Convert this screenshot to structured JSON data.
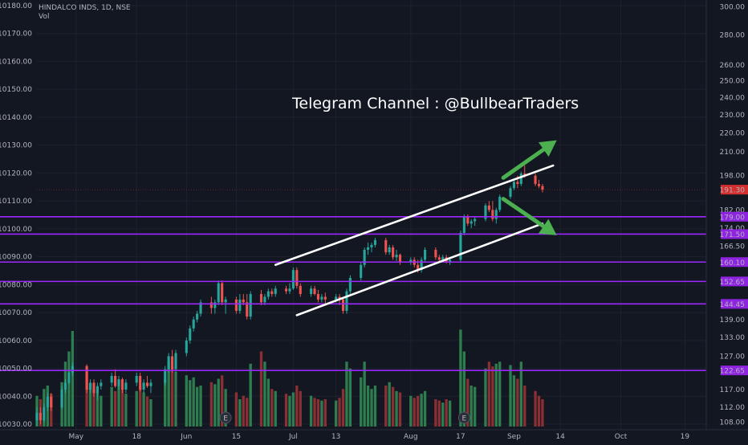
{
  "header": {
    "title": "HINDALCO INDS, 1D, NSE",
    "volume_label": "Vol"
  },
  "annotation": "Telegram Channel : @BullbearTraders",
  "colors": {
    "background": "#131722",
    "grid": "#1e222d",
    "up": "#26a69a",
    "down": "#ef5350",
    "vol_up": "#2e7d4f",
    "vol_down": "#8a2f33",
    "level": "#9c27ff",
    "level_label": "#8e24e0",
    "last_price": "#d32f2f",
    "arrow": "#4caf50",
    "trend": "#ffffff",
    "axis_text": "#b2b5be"
  },
  "chart_data": {
    "type": "candlestick",
    "title": "HINDALCO INDS, 1D, NSE",
    "left_axis_ticks": [
      10030,
      10040,
      10050,
      10060,
      10070,
      10080,
      10090,
      10100,
      10110,
      10120,
      10130,
      10140,
      10150,
      10160,
      10170,
      10180
    ],
    "left_axis_labels": [
      "10030.00",
      "10040.00",
      "10050.00",
      "10060.00",
      "10070.00",
      "10080.00",
      "10090.00",
      "10100.00",
      "10110.00",
      "10120.00",
      "10130.00",
      "10140.00",
      "10150.00",
      "10160.00",
      "10170.00",
      "10180.00"
    ],
    "left_axis_range": [
      10028,
      10182
    ],
    "right_axis_scale": "log",
    "right_axis_range": [
      106,
      305
    ],
    "right_axis_ticks": [
      108,
      112,
      117,
      122,
      127,
      133,
      139,
      144,
      152,
      160,
      166.5,
      174,
      182,
      190,
      198,
      210,
      220,
      230,
      240,
      250,
      260,
      280,
      300
    ],
    "right_axis_labels": [
      "108.00",
      "112.00",
      "117.00",
      "122.00",
      "127.00",
      "133.00",
      "139.00",
      "",
      "",
      "",
      "166.50",
      "174.00",
      "182.00",
      "",
      "198.00",
      "210.00",
      "220.00",
      "230.00",
      "240.00",
      "250.00",
      "260.00",
      "280.00",
      "300.00"
    ],
    "x_axis_range": [
      "2020-04-20",
      "2020-10-25"
    ],
    "x_ticks": [
      {
        "date": "2020-05-01",
        "label": "May"
      },
      {
        "date": "2020-05-18",
        "label": "18"
      },
      {
        "date": "2020-06-01",
        "label": "Jun"
      },
      {
        "date": "2020-06-15",
        "label": "15"
      },
      {
        "date": "2020-07-01",
        "label": "Jul"
      },
      {
        "date": "2020-07-13",
        "label": "13"
      },
      {
        "date": "2020-08-03",
        "label": "Aug"
      },
      {
        "date": "2020-08-17",
        "label": "17"
      },
      {
        "date": "2020-09-01",
        "label": "Sep"
      },
      {
        "date": "2020-09-14",
        "label": "14"
      },
      {
        "date": "2020-10-01",
        "label": "Oct"
      },
      {
        "date": "2020-10-19",
        "label": "19"
      }
    ],
    "levels": [
      {
        "value": 179.0,
        "label": "179.00"
      },
      {
        "value": 171.5,
        "label": "171.50"
      },
      {
        "value": 160.1,
        "label": "160.10"
      },
      {
        "value": 152.65,
        "label": "152.65"
      },
      {
        "value": 144.45,
        "label": "144.45"
      },
      {
        "value": 122.65,
        "label": "122.65"
      }
    ],
    "last_price": {
      "value": 191.3,
      "label": "191.30"
    },
    "trendlines": [
      {
        "from": {
          "date": "2020-06-26",
          "value": 159
        },
        "to": {
          "date": "2020-09-12",
          "value": 203
        }
      },
      {
        "from": {
          "date": "2020-07-02",
          "value": 140.5
        },
        "to": {
          "date": "2020-09-09",
          "value": 176
        }
      }
    ],
    "arrows": [
      {
        "from": {
          "date": "2020-08-29",
          "value": 197
        },
        "to": {
          "date": "2020-09-13",
          "value": 216
        }
      },
      {
        "from": {
          "date": "2020-08-29",
          "value": 187
        },
        "to": {
          "date": "2020-09-13",
          "value": 171
        }
      }
    ],
    "earnings_markers": [
      {
        "date": "2020-06-12",
        "label": "E"
      },
      {
        "date": "2020-08-18",
        "label": "E"
      }
    ],
    "volume_range": [
      0,
      160
    ],
    "candles": [
      {
        "date": "2020-04-20",
        "o": 108.5,
        "h": 112,
        "l": 107,
        "c": 110.5,
        "v": 45
      },
      {
        "date": "2020-04-21",
        "o": 110.5,
        "h": 112,
        "l": 107.5,
        "c": 108.5,
        "v": 40
      },
      {
        "date": "2020-04-22",
        "o": 108.5,
        "h": 113,
        "l": 108,
        "c": 112,
        "v": 55
      },
      {
        "date": "2020-04-23",
        "o": 112,
        "h": 116,
        "l": 111,
        "c": 115,
        "v": 60
      },
      {
        "date": "2020-04-24",
        "o": 115,
        "h": 116,
        "l": 111,
        "c": 112,
        "v": 48
      },
      {
        "date": "2020-04-27",
        "o": 112,
        "h": 118,
        "l": 111.5,
        "c": 117,
        "v": 65
      },
      {
        "date": "2020-04-28",
        "o": 117,
        "h": 120,
        "l": 116,
        "c": 119,
        "v": 95
      },
      {
        "date": "2020-04-29",
        "o": 119,
        "h": 123,
        "l": 118.5,
        "c": 122,
        "v": 110
      },
      {
        "date": "2020-04-30",
        "o": 122,
        "h": 125,
        "l": 121,
        "c": 124,
        "v": 140
      },
      {
        "date": "2020-05-04",
        "o": 124,
        "h": 124.5,
        "l": 116,
        "c": 117,
        "v": 78
      },
      {
        "date": "2020-05-05",
        "o": 117,
        "h": 120,
        "l": 116,
        "c": 119,
        "v": 62
      },
      {
        "date": "2020-05-06",
        "o": 119,
        "h": 120,
        "l": 115,
        "c": 116,
        "v": 55
      },
      {
        "date": "2020-05-07",
        "o": 116,
        "h": 119,
        "l": 114,
        "c": 118,
        "v": 50
      },
      {
        "date": "2020-05-08",
        "o": 118,
        "h": 120,
        "l": 117,
        "c": 119,
        "v": 45
      },
      {
        "date": "2020-05-11",
        "o": 119,
        "h": 122,
        "l": 118,
        "c": 121,
        "v": 58
      },
      {
        "date": "2020-05-12",
        "o": 121,
        "h": 123,
        "l": 117.5,
        "c": 118,
        "v": 52
      },
      {
        "date": "2020-05-13",
        "o": 118,
        "h": 121,
        "l": 117,
        "c": 120,
        "v": 60
      },
      {
        "date": "2020-05-14",
        "o": 120,
        "h": 120.5,
        "l": 116,
        "c": 117,
        "v": 55
      },
      {
        "date": "2020-05-15",
        "o": 117,
        "h": 120,
        "l": 116,
        "c": 119,
        "v": 48
      },
      {
        "date": "2020-05-18",
        "o": 119,
        "h": 122,
        "l": 118,
        "c": 121,
        "v": 52
      },
      {
        "date": "2020-05-19",
        "o": 121,
        "h": 122,
        "l": 116.5,
        "c": 117,
        "v": 58
      },
      {
        "date": "2020-05-20",
        "o": 117,
        "h": 120,
        "l": 116,
        "c": 119,
        "v": 50
      },
      {
        "date": "2020-05-21",
        "o": 119,
        "h": 121,
        "l": 117.5,
        "c": 118,
        "v": 44
      },
      {
        "date": "2020-05-22",
        "o": 118,
        "h": 120,
        "l": 116,
        "c": 119,
        "v": 40
      },
      {
        "date": "2020-05-26",
        "o": 119,
        "h": 124,
        "l": 118,
        "c": 123,
        "v": 70
      },
      {
        "date": "2020-05-27",
        "o": 123,
        "h": 128,
        "l": 122,
        "c": 127,
        "v": 95
      },
      {
        "date": "2020-05-28",
        "o": 127,
        "h": 129,
        "l": 122,
        "c": 123,
        "v": 88
      },
      {
        "date": "2020-05-29",
        "o": 123,
        "h": 129,
        "l": 122,
        "c": 128,
        "v": 80
      },
      {
        "date": "2020-06-01",
        "o": 128,
        "h": 133,
        "l": 127,
        "c": 132,
        "v": 75
      },
      {
        "date": "2020-06-02",
        "o": 132,
        "h": 137,
        "l": 131,
        "c": 136,
        "v": 68
      },
      {
        "date": "2020-06-03",
        "o": 136,
        "h": 140,
        "l": 135,
        "c": 139,
        "v": 72
      },
      {
        "date": "2020-06-04",
        "o": 139,
        "h": 142,
        "l": 138,
        "c": 141,
        "v": 58
      },
      {
        "date": "2020-06-05",
        "o": 141,
        "h": 146,
        "l": 140,
        "c": 145,
        "v": 60
      },
      {
        "date": "2020-06-08",
        "o": 145,
        "h": 147,
        "l": 141,
        "c": 143,
        "v": 65
      },
      {
        "date": "2020-06-09",
        "o": 143,
        "h": 146,
        "l": 141,
        "c": 145,
        "v": 62
      },
      {
        "date": "2020-06-10",
        "o": 145,
        "h": 153,
        "l": 144,
        "c": 152,
        "v": 70
      },
      {
        "date": "2020-06-11",
        "o": 152,
        "h": 153,
        "l": 144,
        "c": 145,
        "v": 75
      },
      {
        "date": "2020-06-12",
        "o": 145,
        "h": 147,
        "l": 141,
        "c": 146,
        "v": 55
      },
      {
        "date": "2020-06-15",
        "o": 146,
        "h": 147,
        "l": 141,
        "c": 142,
        "v": 50
      },
      {
        "date": "2020-06-16",
        "o": 142,
        "h": 148,
        "l": 141,
        "c": 146,
        "v": 40
      },
      {
        "date": "2020-06-17",
        "o": 146,
        "h": 148,
        "l": 144,
        "c": 145,
        "v": 45
      },
      {
        "date": "2020-06-18",
        "o": 145,
        "h": 148,
        "l": 139,
        "c": 140,
        "v": 42
      },
      {
        "date": "2020-06-19",
        "o": 140,
        "h": 149,
        "l": 139,
        "c": 148,
        "v": 92
      },
      {
        "date": "2020-06-22",
        "o": 148,
        "h": 149.5,
        "l": 144,
        "c": 145,
        "v": 110
      },
      {
        "date": "2020-06-23",
        "o": 145,
        "h": 148,
        "l": 144,
        "c": 147,
        "v": 95
      },
      {
        "date": "2020-06-24",
        "o": 147,
        "h": 150,
        "l": 146,
        "c": 149,
        "v": 70
      },
      {
        "date": "2020-06-25",
        "o": 149,
        "h": 150,
        "l": 147,
        "c": 148,
        "v": 55
      },
      {
        "date": "2020-06-26",
        "o": 148,
        "h": 151,
        "l": 147,
        "c": 150,
        "v": 52
      },
      {
        "date": "2020-06-29",
        "o": 150,
        "h": 151,
        "l": 148,
        "c": 149,
        "v": 48
      },
      {
        "date": "2020-06-30",
        "o": 149,
        "h": 152,
        "l": 148,
        "c": 150,
        "v": 45
      },
      {
        "date": "2020-07-01",
        "o": 150,
        "h": 158,
        "l": 149.5,
        "c": 157,
        "v": 50
      },
      {
        "date": "2020-07-02",
        "o": 157,
        "h": 158,
        "l": 150,
        "c": 151,
        "v": 60
      },
      {
        "date": "2020-07-03",
        "o": 151,
        "h": 152,
        "l": 147,
        "c": 148,
        "v": 52
      },
      {
        "date": "2020-07-06",
        "o": 148,
        "h": 151,
        "l": 147,
        "c": 150,
        "v": 45
      },
      {
        "date": "2020-07-07",
        "o": 150,
        "h": 151,
        "l": 147.5,
        "c": 148,
        "v": 42
      },
      {
        "date": "2020-07-08",
        "o": 148,
        "h": 149.5,
        "l": 145,
        "c": 146,
        "v": 40
      },
      {
        "date": "2020-07-09",
        "o": 146,
        "h": 148,
        "l": 145,
        "c": 147,
        "v": 38
      },
      {
        "date": "2020-07-10",
        "o": 147,
        "h": 148.5,
        "l": 144.5,
        "c": 146,
        "v": 40
      },
      {
        "date": "2020-07-13",
        "o": 146,
        "h": 148,
        "l": 145,
        "c": 147,
        "v": 38
      },
      {
        "date": "2020-07-14",
        "o": 147,
        "h": 148,
        "l": 144,
        "c": 146,
        "v": 42
      },
      {
        "date": "2020-07-15",
        "o": 146,
        "h": 147,
        "l": 141,
        "c": 142,
        "v": 55
      },
      {
        "date": "2020-07-16",
        "o": 142,
        "h": 150,
        "l": 141,
        "c": 149,
        "v": 95
      },
      {
        "date": "2020-07-17",
        "o": 149,
        "h": 155,
        "l": 148,
        "c": 154,
        "v": 85
      },
      {
        "date": "2020-07-20",
        "o": 154,
        "h": 160,
        "l": 153,
        "c": 159,
        "v": 72
      },
      {
        "date": "2020-07-21",
        "o": 159,
        "h": 166,
        "l": 158,
        "c": 165,
        "v": 95
      },
      {
        "date": "2020-07-22",
        "o": 165,
        "h": 168,
        "l": 163,
        "c": 166,
        "v": 60
      },
      {
        "date": "2020-07-23",
        "o": 166,
        "h": 168,
        "l": 164,
        "c": 167,
        "v": 55
      },
      {
        "date": "2020-07-24",
        "o": 167,
        "h": 170,
        "l": 166,
        "c": 169,
        "v": 60
      },
      {
        "date": "2020-07-27",
        "o": 169,
        "h": 170,
        "l": 163,
        "c": 164,
        "v": 60
      },
      {
        "date": "2020-07-28",
        "o": 164,
        "h": 167,
        "l": 163,
        "c": 166,
        "v": 65
      },
      {
        "date": "2020-07-29",
        "o": 166,
        "h": 167,
        "l": 161,
        "c": 162,
        "v": 58
      },
      {
        "date": "2020-07-30",
        "o": 162,
        "h": 165,
        "l": 160.5,
        "c": 163,
        "v": 52
      },
      {
        "date": "2020-07-31",
        "o": 163,
        "h": 163.5,
        "l": 159,
        "c": 160,
        "v": 50
      },
      {
        "date": "2020-08-03",
        "o": 160,
        "h": 162,
        "l": 159,
        "c": 161,
        "v": 45
      },
      {
        "date": "2020-08-04",
        "o": 161,
        "h": 162,
        "l": 158,
        "c": 159,
        "v": 42
      },
      {
        "date": "2020-08-05",
        "o": 159,
        "h": 161,
        "l": 156,
        "c": 157,
        "v": 45
      },
      {
        "date": "2020-08-06",
        "o": 157,
        "h": 162,
        "l": 156,
        "c": 161,
        "v": 48
      },
      {
        "date": "2020-08-07",
        "o": 161,
        "h": 166,
        "l": 160,
        "c": 165,
        "v": 52
      },
      {
        "date": "2020-08-10",
        "o": 165,
        "h": 166,
        "l": 161,
        "c": 162,
        "v": 40
      },
      {
        "date": "2020-08-11",
        "o": 162,
        "h": 163,
        "l": 160,
        "c": 161,
        "v": 38
      },
      {
        "date": "2020-08-12",
        "o": 161,
        "h": 163,
        "l": 160,
        "c": 162,
        "v": 35
      },
      {
        "date": "2020-08-13",
        "o": 162,
        "h": 163,
        "l": 159.5,
        "c": 160,
        "v": 40
      },
      {
        "date": "2020-08-14",
        "o": 160,
        "h": 162,
        "l": 159,
        "c": 161,
        "v": 38
      },
      {
        "date": "2020-08-17",
        "o": 161,
        "h": 173,
        "l": 160,
        "c": 172,
        "v": 142
      },
      {
        "date": "2020-08-18",
        "o": 172,
        "h": 180,
        "l": 171,
        "c": 179,
        "v": 110
      },
      {
        "date": "2020-08-19",
        "o": 179,
        "h": 180,
        "l": 175,
        "c": 176,
        "v": 70
      },
      {
        "date": "2020-08-20",
        "o": 176,
        "h": 178,
        "l": 174,
        "c": 177,
        "v": 60
      },
      {
        "date": "2020-08-21",
        "o": 177,
        "h": 179,
        "l": 175,
        "c": 178,
        "v": 58
      },
      {
        "date": "2020-08-24",
        "o": 178,
        "h": 185,
        "l": 177,
        "c": 184,
        "v": 85
      },
      {
        "date": "2020-08-25",
        "o": 184,
        "h": 186,
        "l": 181,
        "c": 182,
        "v": 95
      },
      {
        "date": "2020-08-26",
        "o": 182,
        "h": 186,
        "l": 177,
        "c": 178,
        "v": 88
      },
      {
        "date": "2020-08-27",
        "o": 178,
        "h": 183,
        "l": 176,
        "c": 182,
        "v": 92
      },
      {
        "date": "2020-08-28",
        "o": 182,
        "h": 189,
        "l": 181,
        "c": 188,
        "v": 95
      },
      {
        "date": "2020-08-31",
        "o": 188,
        "h": 193,
        "l": 187,
        "c": 192,
        "v": 90
      },
      {
        "date": "2020-09-01",
        "o": 192,
        "h": 196,
        "l": 191,
        "c": 195,
        "v": 75
      },
      {
        "date": "2020-09-02",
        "o": 195,
        "h": 198,
        "l": 192,
        "c": 194,
        "v": 70
      },
      {
        "date": "2020-09-03",
        "o": 194,
        "h": 200,
        "l": 193,
        "c": 199,
        "v": 95
      },
      {
        "date": "2020-09-04",
        "o": 199,
        "h": 203,
        "l": 197,
        "c": 198,
        "v": 60
      },
      {
        "date": "2020-09-07",
        "o": 198,
        "h": 199,
        "l": 193,
        "c": 194,
        "v": 52
      },
      {
        "date": "2020-09-08",
        "o": 194,
        "h": 196,
        "l": 192,
        "c": 193,
        "v": 45
      },
      {
        "date": "2020-09-09",
        "o": 193,
        "h": 194,
        "l": 190,
        "c": 191.3,
        "v": 40
      }
    ]
  }
}
